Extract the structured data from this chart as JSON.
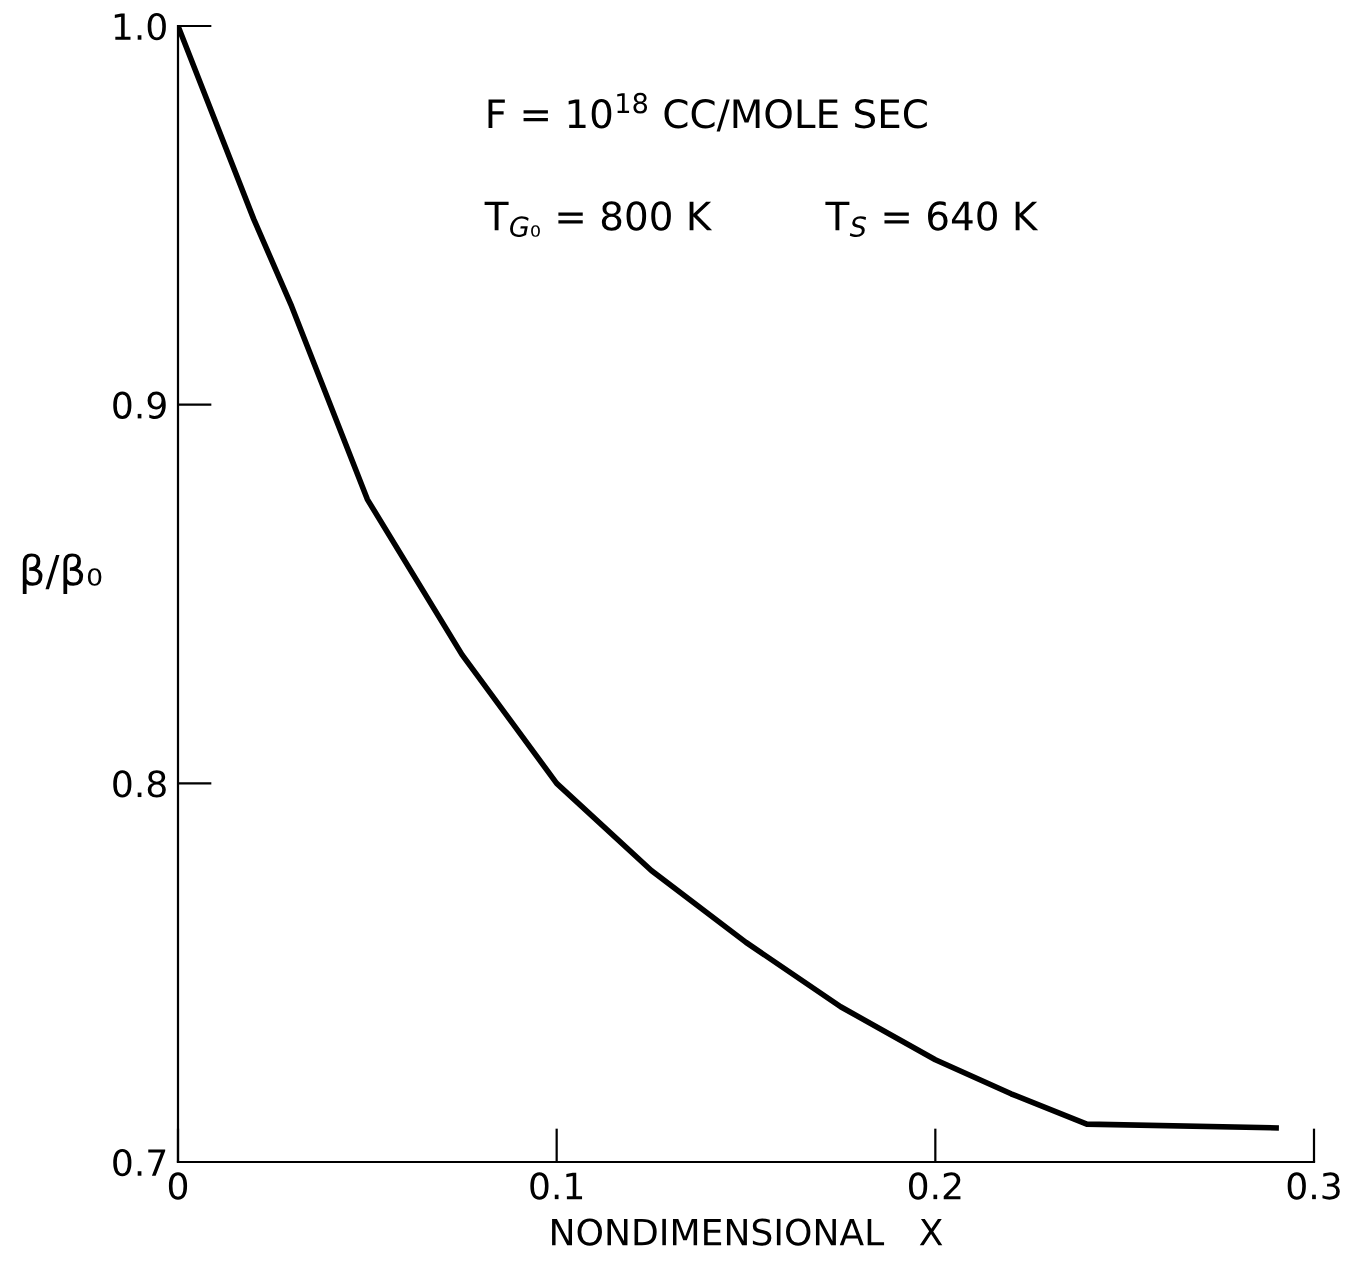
{
  "chart_data": {
    "type": "line",
    "xlabel": "NONDIMENSIONAL   X",
    "ylabel": "β/β₀",
    "annotations": [
      "F = 10$^{18}$ CC/MOLE SEC",
      "T$_{G₀}$ = 800 K",
      "T$_{S}$ = 640 K"
    ],
    "series": [
      {
        "color": "#000000",
        "x": [
          0,
          0.02,
          0.03,
          0.05,
          0.075,
          0.1,
          0.125,
          0.15,
          0.175,
          0.2,
          0.22,
          0.24,
          0.29
        ],
        "values": [
          1.0,
          0.949,
          0.926,
          0.875,
          0.834,
          0.8,
          0.777,
          0.758,
          0.741,
          0.727,
          0.718,
          0.71,
          0.709
        ]
      }
    ],
    "xlim": [
      0,
      0.3
    ],
    "ylim": [
      0.7,
      1.0
    ],
    "xticks": [
      0,
      0.1,
      0.2,
      0.3
    ],
    "yticks": [
      0.7,
      0.8,
      0.9,
      {
        "value": 1.0,
        "label": "1.0"
      }
    ],
    "grid": false,
    "legend": false,
    "marker": "none",
    "line_style": "solid"
  }
}
